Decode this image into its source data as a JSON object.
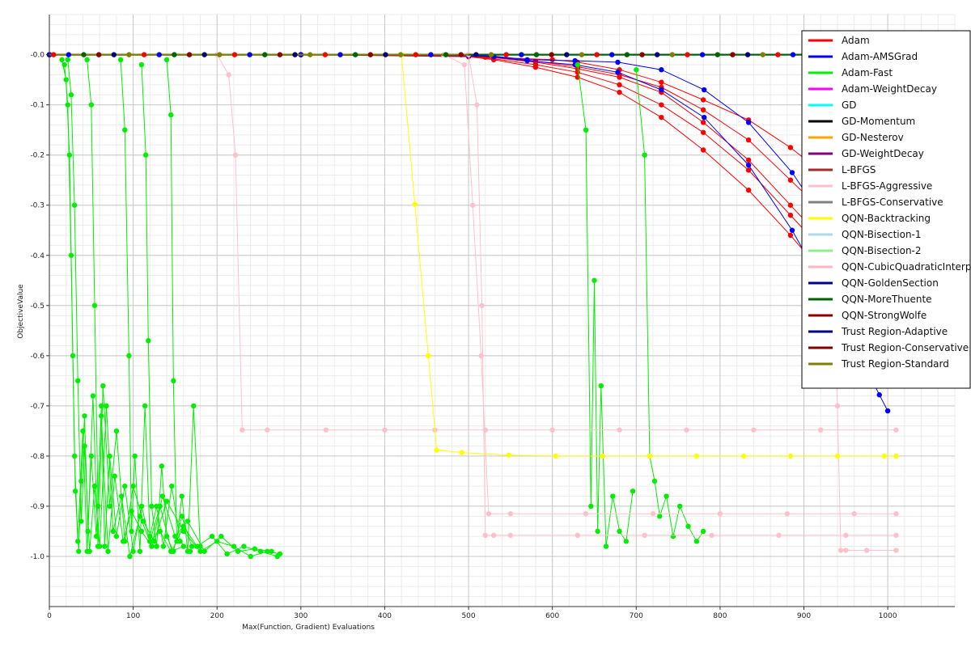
{
  "chart_data": {
    "type": "line",
    "title": "",
    "xlabel": "Max(Function, Gradient) Evaluations",
    "ylabel": "ObjectiveValue",
    "xlim": [
      0,
      1080
    ],
    "ylim": [
      -1.1,
      0.08
    ],
    "x_ticks": [
      0,
      100,
      200,
      300,
      400,
      500,
      600,
      700,
      800,
      900,
      1000
    ],
    "y_ticks": [
      -1.0,
      -0.9,
      -0.8,
      -0.7,
      -0.6,
      -0.5,
      -0.4,
      -0.3,
      -0.2,
      -0.1,
      0.0
    ],
    "x_tick_labels": [
      "0",
      "100",
      "200",
      "300",
      "400",
      "500",
      "600",
      "700",
      "800",
      "900",
      "1000"
    ],
    "y_tick_labels": [
      "-1.0",
      "-0.9",
      "-0.8",
      "-0.7",
      "-0.6",
      "-0.5",
      "-0.4",
      "-0.3",
      "-0.2",
      "-0.1",
      "-0.0"
    ],
    "grid": true,
    "legend_position": "top-right",
    "legend": [
      {
        "name": "Adam",
        "color": "#ff0000"
      },
      {
        "name": "Adam-AMSGrad",
        "color": "#0000ff"
      },
      {
        "name": "Adam-Fast",
        "color": "#00ee00"
      },
      {
        "name": "Adam-WeightDecay",
        "color": "#ff00ff"
      },
      {
        "name": "GD",
        "color": "#00ffff"
      },
      {
        "name": "GD-Momentum",
        "color": "#000000"
      },
      {
        "name": "GD-Nesterov",
        "color": "#ffa500"
      },
      {
        "name": "GD-WeightDecay",
        "color": "#800080"
      },
      {
        "name": "L-BFGS",
        "color": "#a52a2a"
      },
      {
        "name": "L-BFGS-Aggressive",
        "color": "#ffc0cb"
      },
      {
        "name": "L-BFGS-Conservative",
        "color": "#808080"
      },
      {
        "name": "QQN-Backtracking",
        "color": "#ffff00"
      },
      {
        "name": "QQN-Bisection-1",
        "color": "#add8e6"
      },
      {
        "name": "QQN-Bisection-2",
        "color": "#90ee90"
      },
      {
        "name": "QQN-CubicQuadraticInterpolation",
        "color": "#ffb6c1"
      },
      {
        "name": "QQN-GoldenSection",
        "color": "#00008b"
      },
      {
        "name": "QQN-MoreThuente",
        "color": "#006400"
      },
      {
        "name": "QQN-StrongWolfe",
        "color": "#8b0000"
      },
      {
        "name": "Trust Region-Adaptive",
        "color": "#000080"
      },
      {
        "name": "Trust Region-Conservative",
        "color": "#800000"
      },
      {
        "name": "Trust Region-Standard",
        "color": "#808000"
      }
    ],
    "series": [
      {
        "legend_index": 0,
        "x": [
          0,
          300,
          500,
          520,
          600,
          630,
          680,
          730,
          780,
          834,
          884,
          940,
          1000
        ],
        "y": [
          0,
          0,
          -0.002,
          -0.005,
          -0.01,
          -0.015,
          -0.03,
          -0.055,
          -0.09,
          -0.13,
          -0.185,
          -0.26,
          -0.33
        ]
      },
      {
        "legend_index": 0,
        "x": [
          0,
          300,
          500,
          530,
          580,
          630,
          680,
          730,
          780,
          834,
          884,
          940,
          1000
        ],
        "y": [
          0,
          0,
          -0.003,
          -0.008,
          -0.02,
          -0.035,
          -0.06,
          -0.1,
          -0.155,
          -0.23,
          -0.32,
          -0.42,
          -0.55
        ]
      },
      {
        "legend_index": 0,
        "x": [
          0,
          300,
          500,
          530,
          580,
          630,
          680,
          730,
          780,
          834,
          884,
          940,
          1000
        ],
        "y": [
          0,
          0,
          -0.004,
          -0.01,
          -0.025,
          -0.045,
          -0.075,
          -0.125,
          -0.19,
          -0.27,
          -0.36,
          -0.47,
          -0.6
        ]
      },
      {
        "legend_index": 0,
        "x": [
          0,
          300,
          500,
          530,
          580,
          630,
          680,
          730,
          780,
          834,
          884,
          940,
          1000
        ],
        "y": [
          0,
          0,
          -0.002,
          -0.006,
          -0.015,
          -0.028,
          -0.045,
          -0.075,
          -0.135,
          -0.21,
          -0.3,
          -0.4,
          -0.51
        ]
      },
      {
        "legend_index": 0,
        "x": [
          0,
          300,
          500,
          530,
          580,
          630,
          680,
          730,
          780,
          834,
          884,
          940,
          1000
        ],
        "y": [
          0,
          0,
          -0.002,
          -0.005,
          -0.013,
          -0.024,
          -0.04,
          -0.065,
          -0.11,
          -0.17,
          -0.25,
          -0.34,
          -0.45
        ]
      },
      {
        "legend_index": 1,
        "x": [
          0,
          300,
          500,
          530,
          570,
          627,
          678,
          730,
          781,
          834,
          886,
          936,
          990,
          1000
        ],
        "y": [
          0,
          0,
          -0.001,
          -0.003,
          -0.01,
          -0.012,
          -0.015,
          -0.03,
          -0.07,
          -0.135,
          -0.235,
          -0.36,
          -0.48,
          -0.53
        ]
      },
      {
        "legend_index": 1,
        "x": [
          0,
          300,
          500,
          530,
          570,
          627,
          678,
          730,
          781,
          834,
          886,
          936,
          990,
          1000
        ],
        "y": [
          0,
          0,
          -0.002,
          -0.004,
          -0.012,
          -0.02,
          -0.035,
          -0.07,
          -0.125,
          -0.22,
          -0.35,
          -0.5,
          -0.678,
          -0.71
        ]
      },
      {
        "legend_index": 2,
        "x": [
          15,
          20,
          24,
          28,
          31,
          35,
          38,
          42,
          46,
          52,
          58,
          64,
          72,
          80,
          90,
          100,
          112,
          125,
          140,
          160,
          180,
          200,
          220,
          240,
          260,
          275
        ],
        "y": [
          -0.01,
          -0.05,
          -0.2,
          -0.6,
          -0.87,
          -0.99,
          -0.85,
          -0.72,
          -0.95,
          -0.68,
          -0.98,
          -0.66,
          -0.9,
          -0.75,
          -0.97,
          -0.86,
          -0.93,
          -0.97,
          -0.89,
          -0.95,
          -0.99,
          -0.97,
          -0.98,
          -1.0,
          -0.99,
          -0.995
        ]
      },
      {
        "legend_index": 2,
        "x": [
          18,
          22,
          26,
          30,
          34,
          40,
          45,
          50,
          56,
          62,
          70,
          78,
          88,
          98,
          110,
          122,
          135,
          150,
          165,
          185,
          205,
          225,
          245,
          265
        ],
        "y": [
          -0.02,
          -0.1,
          -0.4,
          -0.8,
          -0.97,
          -0.75,
          -0.99,
          -0.8,
          -0.96,
          -0.72,
          -0.99,
          -0.84,
          -0.97,
          -0.91,
          -0.95,
          -0.98,
          -0.88,
          -0.96,
          -0.93,
          -0.99,
          -0.96,
          -0.99,
          -0.985,
          -0.99
        ]
      },
      {
        "legend_index": 2,
        "x": [
          22,
          26,
          30,
          34,
          38,
          42,
          48,
          54,
          60,
          68,
          76,
          86,
          96,
          108,
          120,
          132,
          146,
          160,
          176,
          194,
          212,
          232,
          252,
          272
        ],
        "y": [
          -0.01,
          -0.08,
          -0.3,
          -0.65,
          -0.93,
          -0.78,
          -0.99,
          -0.86,
          -0.98,
          -0.7,
          -0.95,
          -0.88,
          -1.0,
          -0.92,
          -0.97,
          -0.9,
          -0.99,
          -0.94,
          -0.98,
          -0.96,
          -0.995,
          -0.98,
          -0.99,
          -1.0
        ]
      },
      {
        "legend_index": 2,
        "x": [
          45,
          50,
          54,
          58,
          62,
          66,
          72,
          80,
          90,
          100,
          110,
          120,
          132,
          145,
          160
        ],
        "y": [
          -0.01,
          -0.1,
          -0.5,
          -0.9,
          -0.7,
          -0.98,
          -0.8,
          -0.96,
          -0.86,
          -0.99,
          -0.9,
          -0.97,
          -0.95,
          -0.99,
          -0.98
        ]
      },
      {
        "legend_index": 2,
        "x": [
          85,
          90,
          95,
          98,
          102,
          108,
          114,
          120,
          128,
          136,
          146,
          156,
          168
        ],
        "y": [
          -0.01,
          -0.15,
          -0.6,
          -0.95,
          -0.8,
          -0.99,
          -0.7,
          -0.96,
          -0.9,
          -0.98,
          -0.86,
          -0.97,
          -0.99
        ]
      },
      {
        "legend_index": 2,
        "x": [
          110,
          115,
          118,
          122,
          128,
          134,
          140,
          148,
          158,
          170
        ],
        "y": [
          -0.02,
          -0.2,
          -0.57,
          -0.9,
          -0.98,
          -0.82,
          -0.96,
          -0.99,
          -0.92,
          -0.98
        ]
      },
      {
        "legend_index": 2,
        "x": [
          140,
          145,
          148,
          152,
          158,
          165,
          172,
          180
        ],
        "y": [
          -0.01,
          -0.12,
          -0.65,
          -0.97,
          -0.88,
          -0.99,
          -0.7,
          -0.98
        ]
      },
      {
        "legend_index": 2,
        "x": [
          630,
          640,
          646,
          650,
          654,
          658,
          664,
          672,
          680,
          688,
          696
        ],
        "y": [
          -0.02,
          -0.15,
          -0.9,
          -0.45,
          -0.95,
          -0.66,
          -0.98,
          -0.88,
          -0.95,
          -0.97,
          -0.87
        ]
      },
      {
        "legend_index": 2,
        "x": [
          700,
          710,
          716,
          722,
          728,
          736,
          744,
          752,
          762,
          772,
          780
        ],
        "y": [
          -0.03,
          -0.2,
          -0.8,
          -0.85,
          -0.92,
          -0.88,
          -0.96,
          -0.9,
          -0.94,
          -0.97,
          -0.95
        ]
      },
      {
        "legend_index": 9,
        "x": [
          200,
          214,
          222,
          230,
          260,
          330,
          400,
          460,
          520,
          600,
          680,
          760,
          840,
          920,
          1010
        ],
        "y": [
          0,
          -0.04,
          -0.2,
          -0.748,
          -0.748,
          -0.748,
          -0.748,
          -0.748,
          -0.748,
          -0.748,
          -0.748,
          -0.748,
          -0.748,
          -0.748,
          -0.748
        ]
      },
      {
        "legend_index": 9,
        "x": [
          470,
          495,
          505,
          515,
          524,
          550,
          640,
          720,
          800,
          880,
          960,
          1010
        ],
        "y": [
          0,
          -0.02,
          -0.3,
          -0.6,
          -0.915,
          -0.915,
          -0.915,
          -0.915,
          -0.915,
          -0.915,
          -0.915,
          -0.915
        ]
      },
      {
        "legend_index": 9,
        "x": [
          500,
          510,
          516,
          520,
          530,
          550,
          630,
          710,
          790,
          870,
          950,
          1010
        ],
        "y": [
          0,
          -0.1,
          -0.5,
          -0.958,
          -0.958,
          -0.958,
          -0.958,
          -0.958,
          -0.958,
          -0.958,
          -0.958,
          -0.958
        ]
      },
      {
        "legend_index": 9,
        "x": [
          900,
          930,
          940,
          944,
          950,
          975,
          1010
        ],
        "y": [
          0,
          -0.2,
          -0.7,
          -0.988,
          -0.988,
          -0.988,
          -0.988
        ]
      },
      {
        "legend_index": 11,
        "x": [
          420,
          436,
          452,
          462,
          492,
          548,
          604,
          660,
          716,
          772,
          828,
          884,
          940,
          996,
          1010
        ],
        "y": [
          0,
          -0.298,
          -0.6,
          -0.788,
          -0.793,
          -0.798,
          -0.8,
          -0.8,
          -0.8,
          -0.8,
          -0.8,
          -0.8,
          -0.8,
          -0.8,
          -0.8
        ]
      },
      {
        "legend_index": 15,
        "x": [
          0,
          1080
        ],
        "y": [
          0,
          0
        ]
      },
      {
        "legend_index": 16,
        "x": [
          0,
          1080
        ],
        "y": [
          0,
          0
        ]
      },
      {
        "legend_index": 20,
        "x": [
          0,
          500
        ],
        "y": [
          0,
          0
        ]
      }
    ]
  }
}
